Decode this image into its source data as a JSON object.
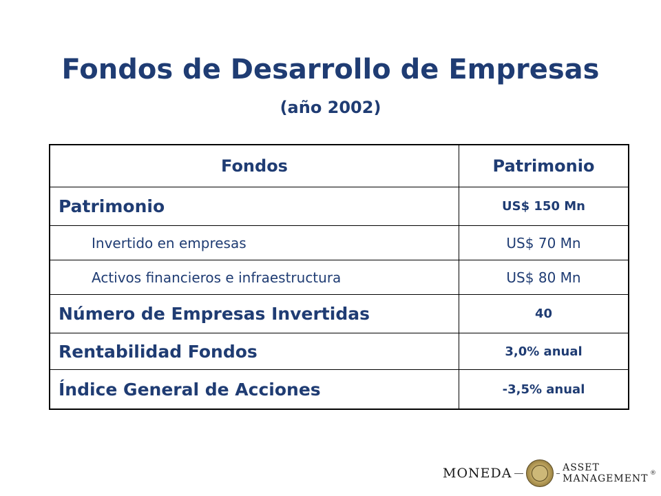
{
  "slide": {
    "title": "Fondos de Desarrollo de Empresas",
    "subtitle": "(año 2002)"
  },
  "table": {
    "headers": [
      "Fondos",
      "Patrimonio"
    ],
    "rows": [
      {
        "label": "Patrimonio",
        "value": "US$ 150 Mn",
        "style": "main"
      },
      {
        "label": "Invertido en empresas",
        "value": "US$ 70 Mn",
        "style": "sub"
      },
      {
        "label": "Activos financieros e infraestructura",
        "value": "US$ 80 Mn",
        "style": "sub"
      },
      {
        "label": "Número de Empresas Invertidas",
        "value": "40",
        "style": "main"
      },
      {
        "label": "Rentabilidad Fondos",
        "value": "3,0% anual",
        "style": "main"
      },
      {
        "label": "Índice General de Acciones",
        "value": "-3,5% anual",
        "style": "main"
      }
    ]
  },
  "logo": {
    "left_word": "MONEDA",
    "right_word": "ASSET MANAGEMENT",
    "registered": "®"
  },
  "colors": {
    "text": "#1f3c73",
    "border": "#000000",
    "background": "#ffffff"
  }
}
